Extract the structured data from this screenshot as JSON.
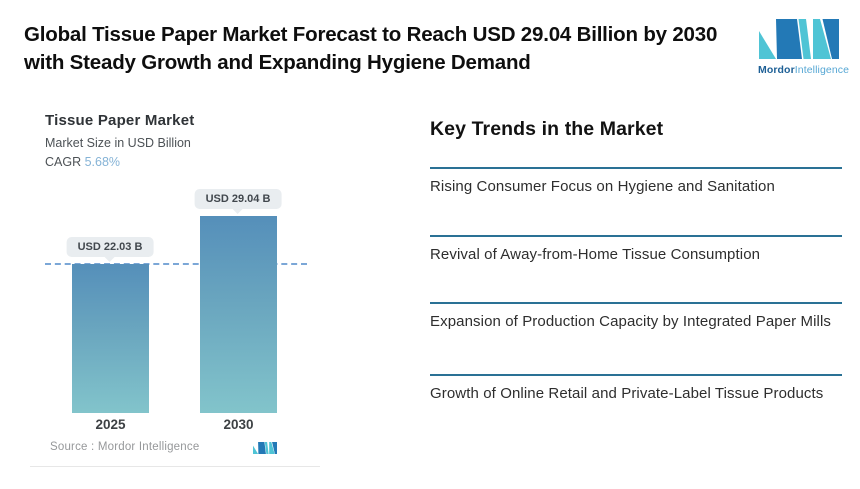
{
  "header": {
    "title": "Global Tissue Paper Market Forecast to Reach USD 29.04 Billion by 2030 with Steady Growth and Expanding Hygiene Demand",
    "brand": {
      "name_bold": "Mordor",
      "name_light": "Intelligence"
    }
  },
  "chart": {
    "title": "Tissue Paper Market",
    "subtitle": "Market Size in USD Billion",
    "cagr_label": "CAGR ",
    "cagr_value": "5.68%",
    "source_text": "Source :  Mordor Intelligence"
  },
  "chart_data": {
    "type": "bar",
    "title": "Tissue Paper Market",
    "ylabel": "Market Size in USD Billion",
    "cagr": "5.68%",
    "categories": [
      "2025",
      "2030"
    ],
    "values": [
      22.03,
      29.04
    ],
    "value_labels": [
      "USD 22.03 B",
      "USD 29.04 B"
    ],
    "ylim": [
      0,
      31
    ],
    "grid": false,
    "reference_line": {
      "value": 22.03,
      "style": "dashed",
      "color": "#7ba7d7"
    },
    "bar_gradient_top": "#558fba",
    "bar_gradient_bottom": "#82c4cb",
    "legend_position": "none"
  },
  "trends": {
    "heading": "Key Trends in the Market",
    "items": [
      "Rising Consumer Focus on Hygiene and Sanitation",
      "Revival of Away-from-Home Tissue Consumption",
      "Expansion of Production Capacity by Integrated Paper Mills",
      "Growth of Online Retail and Private-Label Tissue Products"
    ]
  },
  "colors": {
    "brand_blue": "#2379b6",
    "brand_teal": "#4fc4d5",
    "trend_divider": "#2a7195",
    "accent_light_blue": "#85b3d6"
  }
}
